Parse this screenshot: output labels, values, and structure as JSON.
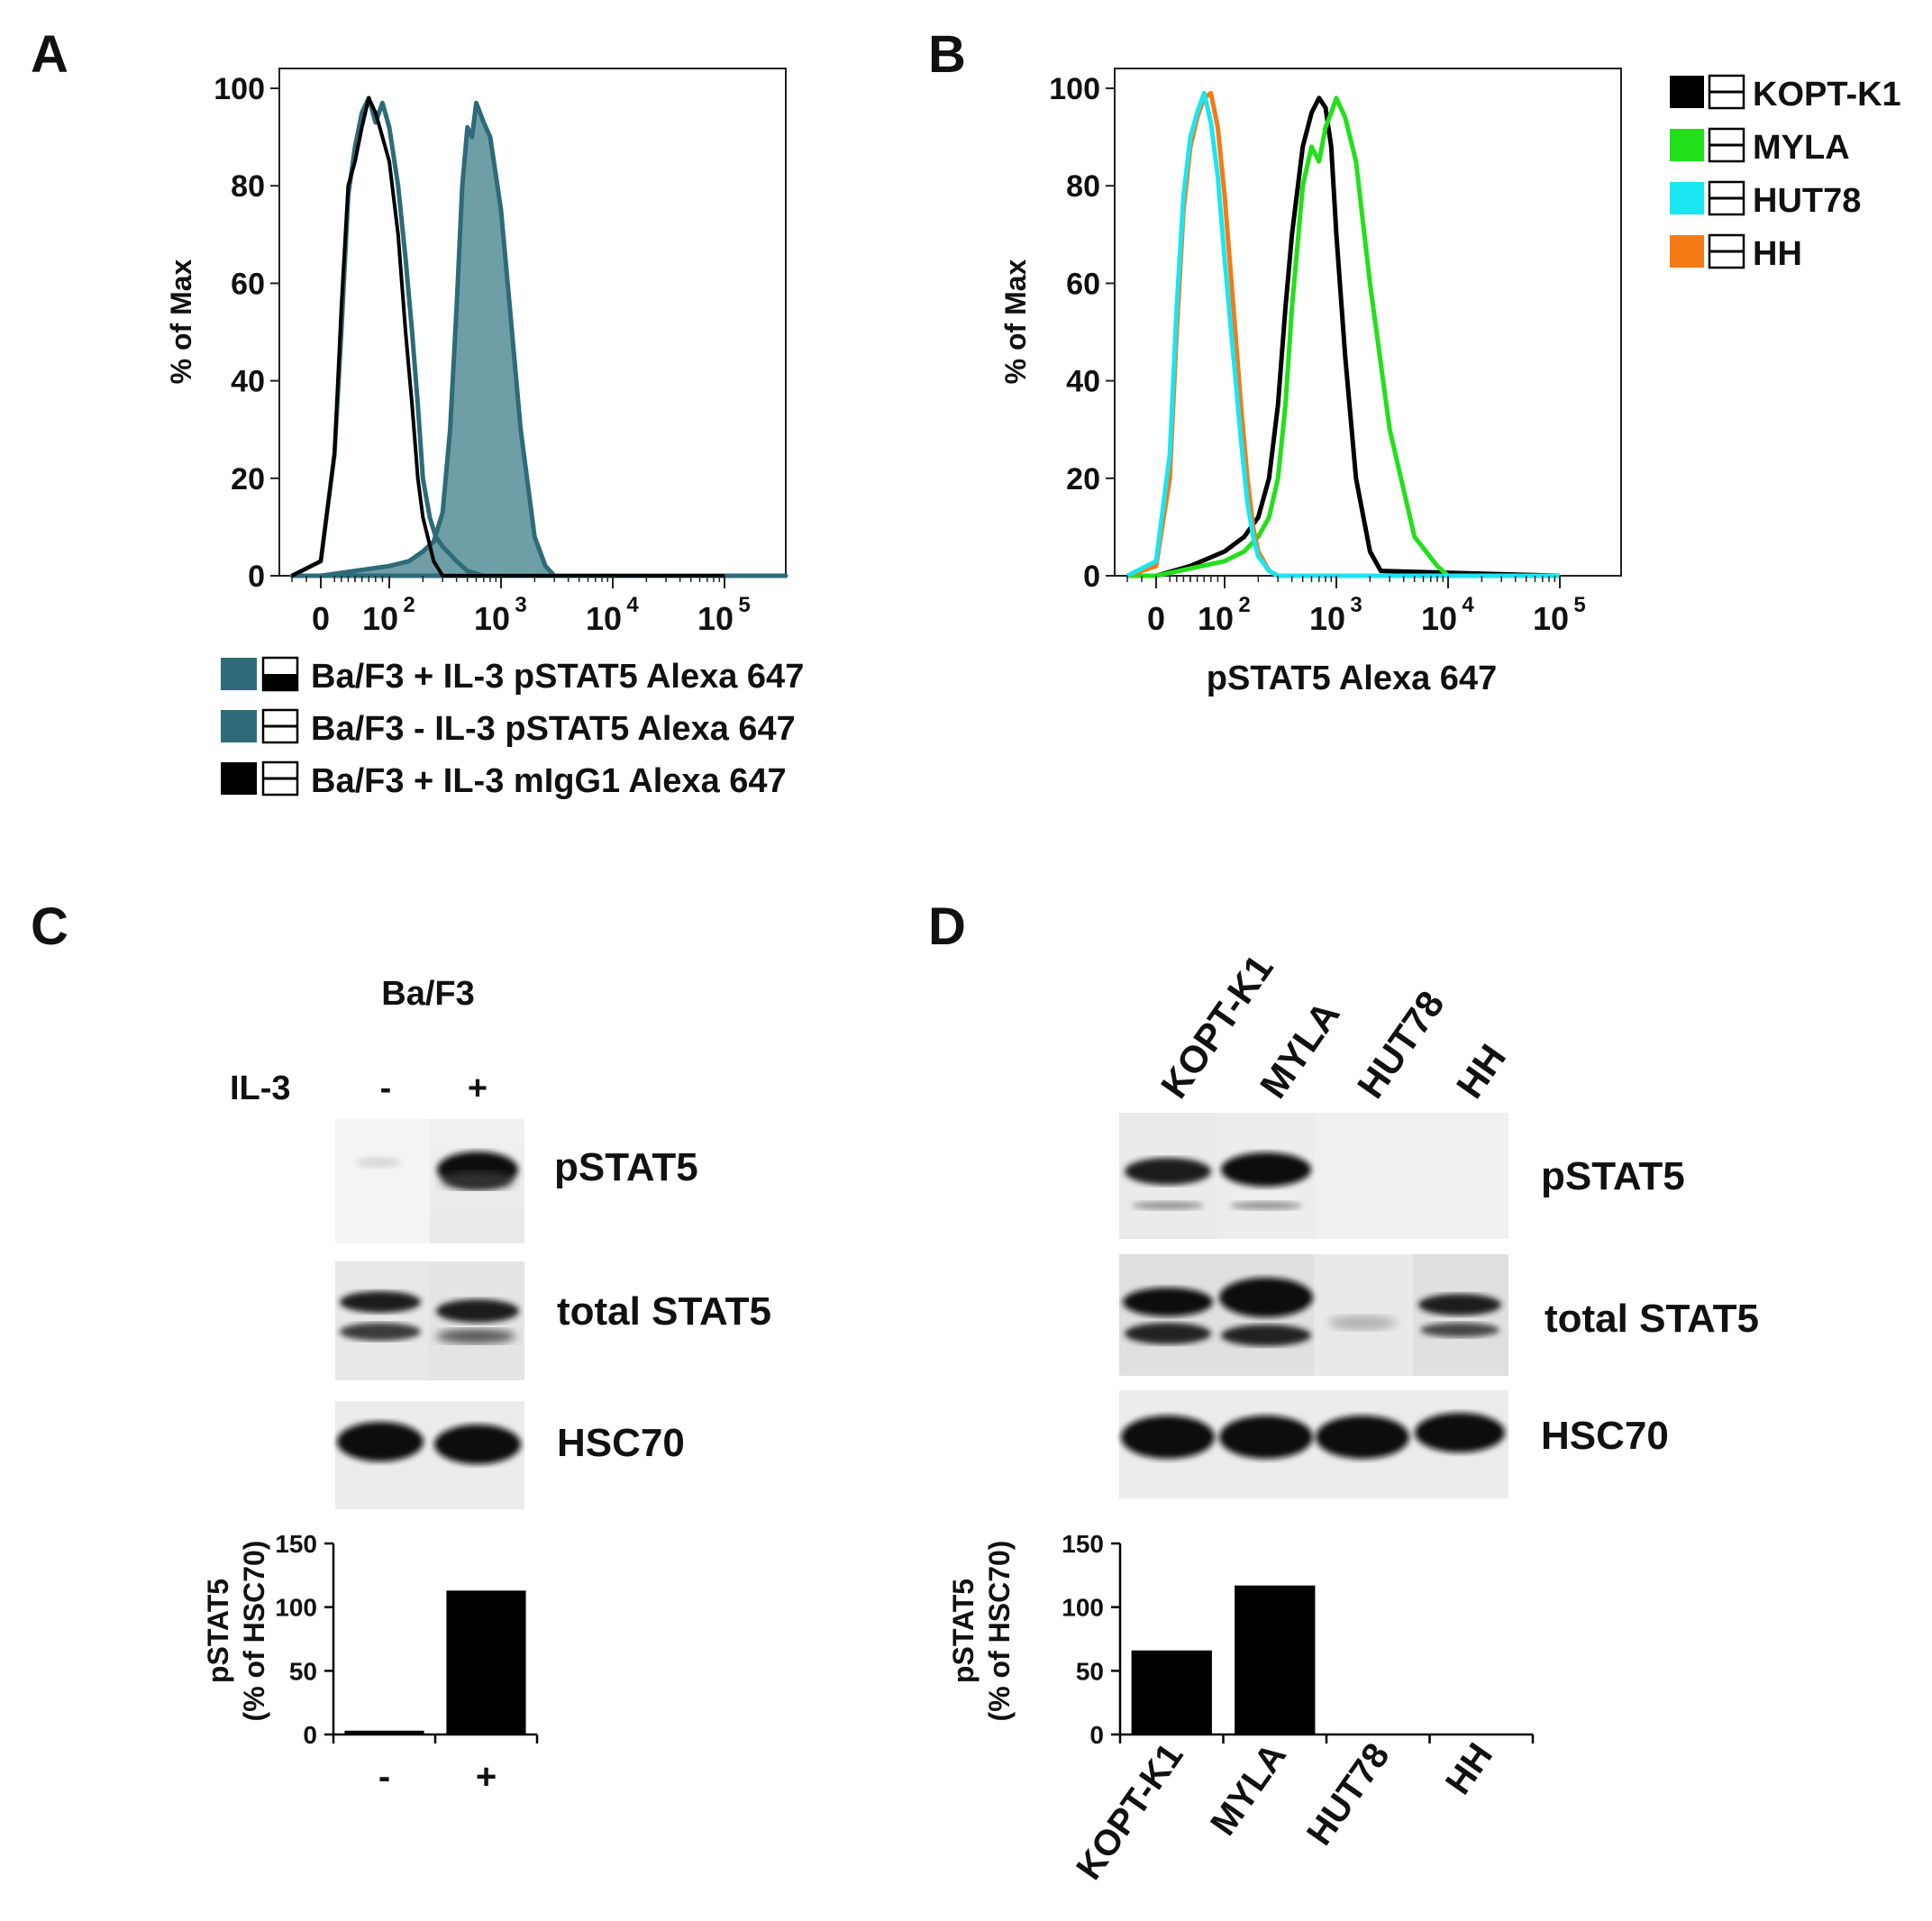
{
  "colors": {
    "teal": "#2e6b78",
    "teal_fill": "#6f9ea6",
    "black": "#000000",
    "green": "#22e01a",
    "cyan": "#19e6f0",
    "orange": "#f47a16"
  },
  "panels": {
    "a": "A",
    "b": "B",
    "c": "C",
    "d": "D"
  },
  "flow_ticks": [
    "0",
    "10",
    "10",
    "10",
    "10"
  ],
  "flow_tick_exps": [
    "",
    "2",
    "3",
    "4",
    "5"
  ],
  "panel_a": {
    "legend": [
      "Ba/F3 + IL-3 pSTAT5 Alexa 647",
      "Ba/F3 - IL-3 pSTAT5 Alexa 647",
      "Ba/F3 + IL-3 mIgG1 Alexa 647"
    ]
  },
  "panel_b": {
    "xlabel": "pSTAT5 Alexa 647",
    "legend": [
      "KOPT-K1",
      "MYLA",
      "HUT78",
      "HH"
    ]
  },
  "panel_c": {
    "cell_line": "Ba/F3",
    "treatment_label": "IL-3",
    "lanes": [
      "-",
      "+"
    ],
    "blots": [
      "pSTAT5",
      "total STAT5",
      "HSC70"
    ]
  },
  "panel_d": {
    "lanes": [
      "KOPT-K1",
      "MYLA",
      "HUT78",
      "HH"
    ],
    "blots": [
      "pSTAT5",
      "total STAT5",
      "HSC70"
    ]
  },
  "chart_data": [
    {
      "type": "line",
      "panel": "A",
      "xlabel": "",
      "ylabel": "% of Max",
      "yticks": [
        "0",
        "20",
        "40",
        "60",
        "80",
        "100"
      ],
      "ylim": [
        0,
        100
      ],
      "xscale": "biexponential",
      "xlim": [
        -100,
        262144
      ],
      "series": [
        {
          "name": "Ba/F3 + IL-3 pSTAT5 Alexa 647",
          "filled": true,
          "x": [
            -100,
            0,
            100,
            150,
            200,
            250,
            300,
            350,
            400,
            450,
            500,
            550,
            600,
            700,
            800,
            1000,
            1200,
            1500,
            2000,
            2500,
            3000,
            5000,
            100000
          ],
          "y": [
            0,
            0,
            2,
            3,
            5,
            7,
            13,
            30,
            55,
            80,
            92,
            90,
            97,
            93,
            90,
            75,
            55,
            30,
            8,
            2,
            0,
            0,
            0
          ]
        },
        {
          "name": "Ba/F3 - IL-3 pSTAT5 Alexa 647",
          "filled": false,
          "x": [
            -100,
            0,
            20,
            30,
            40,
            50,
            60,
            70,
            80,
            90,
            100,
            120,
            140,
            160,
            180,
            200,
            230,
            260,
            300,
            400,
            500,
            700,
            1000,
            100000
          ],
          "y": [
            0,
            3,
            25,
            50,
            78,
            88,
            95,
            98,
            93,
            97,
            92,
            80,
            65,
            50,
            35,
            20,
            12,
            8,
            6,
            3,
            1,
            0,
            0,
            0
          ]
        },
        {
          "name": "Ba/F3 + IL-3 mIgG1 Alexa 647",
          "filled": false,
          "x": [
            -100,
            0,
            20,
            30,
            40,
            50,
            60,
            70,
            80,
            90,
            100,
            120,
            140,
            160,
            180,
            200,
            250,
            300,
            500,
            100000
          ],
          "y": [
            0,
            3,
            25,
            55,
            80,
            85,
            92,
            98,
            95,
            90,
            85,
            70,
            50,
            35,
            20,
            12,
            3,
            0,
            0,
            0
          ]
        }
      ]
    },
    {
      "type": "line",
      "panel": "B",
      "xlabel": "pSTAT5 Alexa 647",
      "ylabel": "% of Max",
      "yticks": [
        "0",
        "20",
        "40",
        "60",
        "80",
        "100"
      ],
      "ylim": [
        0,
        100
      ],
      "xscale": "biexponential",
      "xlim": [
        -100,
        262144
      ],
      "series": [
        {
          "name": "KOPT-K1",
          "color": "#000000",
          "x": [
            -100,
            0,
            50,
            100,
            150,
            200,
            250,
            300,
            350,
            400,
            500,
            600,
            700,
            800,
            900,
            1000,
            1200,
            1500,
            2000,
            2500,
            100000
          ],
          "y": [
            0,
            0,
            2,
            5,
            8,
            12,
            20,
            35,
            55,
            70,
            88,
            95,
            98,
            96,
            88,
            70,
            45,
            20,
            5,
            1,
            0
          ]
        },
        {
          "name": "MYLA",
          "color": "#22e01a",
          "x": [
            -100,
            0,
            100,
            150,
            200,
            250,
            300,
            350,
            400,
            500,
            600,
            700,
            800,
            900,
            1000,
            1200,
            1500,
            2000,
            3000,
            5000,
            8000,
            10000,
            100000
          ],
          "y": [
            0,
            0,
            3,
            5,
            8,
            12,
            20,
            35,
            55,
            80,
            88,
            85,
            92,
            95,
            98,
            94,
            85,
            60,
            30,
            8,
            2,
            0,
            0
          ]
        },
        {
          "name": "HUT78",
          "color": "#19e6f0",
          "x": [
            -100,
            0,
            20,
            30,
            40,
            50,
            60,
            70,
            80,
            90,
            100,
            120,
            140,
            160,
            180,
            200,
            250,
            300,
            500,
            100000
          ],
          "y": [
            0,
            3,
            25,
            55,
            78,
            90,
            95,
            99,
            93,
            82,
            65,
            45,
            28,
            15,
            8,
            4,
            1,
            0,
            0,
            0
          ]
        },
        {
          "name": "HH",
          "color": "#f47a16",
          "x": [
            -100,
            0,
            20,
            30,
            40,
            50,
            60,
            70,
            80,
            90,
            100,
            120,
            140,
            160,
            180,
            200,
            250,
            300,
            500,
            100000
          ],
          "y": [
            0,
            2,
            20,
            50,
            75,
            88,
            94,
            98,
            99,
            92,
            78,
            55,
            35,
            20,
            10,
            5,
            1,
            0,
            0,
            0
          ]
        }
      ]
    },
    {
      "type": "bar",
      "panel": "C",
      "ylabel": "pSTAT5\n(% of HSC70)",
      "ylabel_lines": [
        "pSTAT5",
        "(% of HSC70)"
      ],
      "categories": [
        "-",
        "+"
      ],
      "values": [
        3,
        113
      ],
      "yticks": [
        "0",
        "50",
        "100",
        "150"
      ],
      "ylim": [
        0,
        150
      ]
    },
    {
      "type": "bar",
      "panel": "D",
      "ylabel": "pSTAT5\n(% of HSC70)",
      "ylabel_lines": [
        "pSTAT5",
        "(% of HSC70)"
      ],
      "categories": [
        "KOPT-K1",
        "MYLA",
        "HUT78",
        "HH"
      ],
      "values": [
        66,
        117,
        0,
        0
      ],
      "yticks": [
        "0",
        "50",
        "100",
        "150"
      ],
      "ylim": [
        0,
        150
      ]
    }
  ]
}
